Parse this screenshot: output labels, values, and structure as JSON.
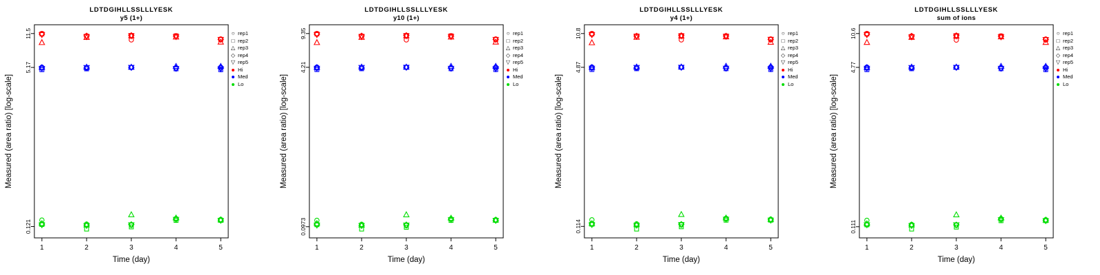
{
  "figure": {
    "grid": false,
    "legend_position": "right",
    "background": "#ffffff",
    "axis_color": "#000000",
    "legend": {
      "reps": [
        {
          "label": "rep1",
          "symbol": "circle"
        },
        {
          "label": "rep2",
          "symbol": "square"
        },
        {
          "label": "rep3",
          "symbol": "triangle-up"
        },
        {
          "label": "rep4",
          "symbol": "diamond"
        },
        {
          "label": "rep5",
          "symbol": "triangle-down"
        }
      ],
      "groups": [
        {
          "label": "Hi",
          "color": "#ff0000"
        },
        {
          "label": "Med",
          "color": "#0000ff"
        },
        {
          "label": "Lo",
          "color": "#00dd00"
        }
      ]
    }
  },
  "chart_data": [
    {
      "type": "scatter",
      "title": "LDTDGIHLLSSLLLYESK",
      "subtitle": "y5 (1+)",
      "xlabel": "Time (day)",
      "ylabel": "Measured (area ratio) [log-scale]",
      "y_scale": "log",
      "xlim": [
        0.8,
        5.2
      ],
      "x_ticks": [
        1,
        2,
        3,
        4,
        5
      ],
      "y_ticks": [
        "11.5",
        "5.17",
        "0.121"
      ],
      "series": [
        {
          "name": "Hi",
          "color": "#ff0000",
          "reps": {
            "rep1": [
              11.5,
              10.9,
              9.9,
              10.9,
              10.1
            ],
            "rep2": [
              11.4,
              10.8,
              11.0,
              10.9,
              10.0
            ],
            "rep3": [
              9.3,
              10.5,
              10.9,
              10.6,
              9.4
            ],
            "rep4": [
              11.3,
              10.9,
              11.0,
              10.8,
              10.0
            ],
            "rep5": [
              11.2,
              10.7,
              10.9,
              10.7,
              10.0
            ]
          }
        },
        {
          "name": "Med",
          "color": "#0000ff",
          "reps": {
            "rep1": [
              5.2,
              5.1,
              5.17,
              5.1,
              5.2
            ],
            "rep2": [
              4.9,
              5.0,
              5.17,
              5.0,
              4.9
            ],
            "rep3": [
              5.15,
              5.2,
              5.2,
              5.3,
              5.3
            ],
            "rep4": [
              5.1,
              5.1,
              5.17,
              5.1,
              5.1
            ],
            "rep5": [
              5.05,
              5.15,
              5.17,
              5.05,
              5.0
            ]
          }
        },
        {
          "name": "Lo",
          "color": "#00dd00",
          "reps": {
            "rep1": [
              0.141,
              0.128,
              0.125,
              0.146,
              0.143
            ],
            "rep2": [
              0.127,
              0.114,
              0.12,
              0.14,
              0.14
            ],
            "rep3": [
              0.13,
              0.126,
              0.16,
              0.148,
              0.142
            ],
            "rep4": [
              0.128,
              0.125,
              0.127,
              0.144,
              0.141
            ],
            "rep5": [
              0.126,
              0.124,
              0.126,
              0.143,
              0.14
            ]
          }
        }
      ]
    },
    {
      "type": "scatter",
      "title": "LDTDGIHLLSSLLLYESK",
      "subtitle": "y10 (1+)",
      "xlabel": "Time (day)",
      "ylabel": "Measured (area ratio) [log-scale]",
      "y_scale": "log",
      "xlim": [
        0.8,
        5.2
      ],
      "x_ticks": [
        1,
        2,
        3,
        4,
        5
      ],
      "y_ticks": [
        "9.35",
        "4.21",
        "0.0973"
      ],
      "series": [
        {
          "name": "Hi",
          "color": "#ff0000",
          "reps": {
            "rep1": [
              9.35,
              8.86,
              8.05,
              8.86,
              8.21
            ],
            "rep2": [
              9.27,
              8.78,
              8.94,
              8.86,
              8.13
            ],
            "rep3": [
              7.56,
              8.54,
              8.86,
              8.62,
              7.64
            ],
            "rep4": [
              9.19,
              8.86,
              8.94,
              8.78,
              8.13
            ],
            "rep5": [
              9.11,
              8.7,
              8.86,
              8.7,
              8.13
            ]
          }
        },
        {
          "name": "Med",
          "color": "#0000ff",
          "reps": {
            "rep1": [
              4.23,
              4.15,
              4.21,
              4.15,
              4.23
            ],
            "rep2": [
              3.99,
              4.07,
              4.21,
              4.07,
              3.99
            ],
            "rep3": [
              4.19,
              4.23,
              4.23,
              4.31,
              4.31
            ],
            "rep4": [
              4.15,
              4.15,
              4.21,
              4.15,
              4.15
            ],
            "rep5": [
              4.11,
              4.19,
              4.21,
              4.11,
              4.07
            ]
          }
        },
        {
          "name": "Lo",
          "color": "#00dd00",
          "reps": {
            "rep1": [
              0.113,
              0.103,
              0.1,
              0.117,
              0.115
            ],
            "rep2": [
              0.102,
              0.092,
              0.096,
              0.113,
              0.113
            ],
            "rep3": [
              0.105,
              0.101,
              0.129,
              0.119,
              0.114
            ],
            "rep4": [
              0.103,
              0.1,
              0.102,
              0.116,
              0.113
            ],
            "rep5": [
              0.101,
              0.1,
              0.101,
              0.115,
              0.113
            ]
          }
        }
      ]
    },
    {
      "type": "scatter",
      "title": "LDTDGIHLLSSLLLYESK",
      "subtitle": "y4 (1+)",
      "xlabel": "Time (day)",
      "ylabel": "Measured (area ratio) [log-scale]",
      "y_scale": "log",
      "xlim": [
        0.8,
        5.2
      ],
      "x_ticks": [
        1,
        2,
        3,
        4,
        5
      ],
      "y_ticks": [
        "10.8",
        "4.87",
        "0.114"
      ],
      "series": [
        {
          "name": "Hi",
          "color": "#ff0000",
          "reps": {
            "rep1": [
              10.8,
              10.2,
              9.3,
              10.2,
              9.5
            ],
            "rep2": [
              10.7,
              10.2,
              10.3,
              10.2,
              9.4
            ],
            "rep3": [
              8.7,
              9.9,
              10.2,
              10.0,
              8.8
            ],
            "rep4": [
              10.6,
              10.2,
              10.3,
              10.2,
              9.4
            ],
            "rep5": [
              10.5,
              10.1,
              10.2,
              10.1,
              9.4
            ]
          }
        },
        {
          "name": "Med",
          "color": "#0000ff",
          "reps": {
            "rep1": [
              4.9,
              4.8,
              4.87,
              4.8,
              4.9
            ],
            "rep2": [
              4.62,
              4.71,
              4.87,
              4.71,
              4.62
            ],
            "rep3": [
              4.85,
              4.9,
              4.9,
              4.99,
              4.99
            ],
            "rep4": [
              4.8,
              4.8,
              4.87,
              4.8,
              4.8
            ],
            "rep5": [
              4.76,
              4.85,
              4.87,
              4.76,
              4.71
            ]
          }
        },
        {
          "name": "Lo",
          "color": "#00dd00",
          "reps": {
            "rep1": [
              0.133,
              0.121,
              0.118,
              0.138,
              0.135
            ],
            "rep2": [
              0.12,
              0.107,
              0.113,
              0.132,
              0.132
            ],
            "rep3": [
              0.122,
              0.119,
              0.151,
              0.139,
              0.134
            ],
            "rep4": [
              0.121,
              0.118,
              0.12,
              0.136,
              0.133
            ],
            "rep5": [
              0.119,
              0.117,
              0.119,
              0.135,
              0.132
            ]
          }
        }
      ]
    },
    {
      "type": "scatter",
      "title": "LDTDGIHLLSSLLLYESK",
      "subtitle": "sum of ions",
      "xlabel": "Time (day)",
      "ylabel": "Measured (area ratio) [log-scale]",
      "y_scale": "log",
      "xlim": [
        0.8,
        5.2
      ],
      "x_ticks": [
        1,
        2,
        3,
        4,
        5
      ],
      "y_ticks": [
        "10.6",
        "4.77",
        "0.111"
      ],
      "series": [
        {
          "name": "Hi",
          "color": "#ff0000",
          "reps": {
            "rep1": [
              10.6,
              10.0,
              9.1,
              10.0,
              9.3
            ],
            "rep2": [
              10.5,
              9.9,
              10.1,
              10.0,
              9.2
            ],
            "rep3": [
              8.6,
              9.7,
              10.0,
              9.8,
              8.6
            ],
            "rep4": [
              10.4,
              10.0,
              10.1,
              9.9,
              9.2
            ],
            "rep5": [
              10.3,
              9.8,
              10.0,
              9.8,
              9.2
            ]
          }
        },
        {
          "name": "Med",
          "color": "#0000ff",
          "reps": {
            "rep1": [
              4.8,
              4.71,
              4.77,
              4.71,
              4.8
            ],
            "rep2": [
              4.52,
              4.62,
              4.77,
              4.62,
              4.52
            ],
            "rep3": [
              4.75,
              4.8,
              4.8,
              4.89,
              4.89
            ],
            "rep4": [
              4.71,
              4.71,
              4.77,
              4.71,
              4.71
            ],
            "rep5": [
              4.66,
              4.75,
              4.77,
              4.66,
              4.62
            ]
          }
        },
        {
          "name": "Lo",
          "color": "#00dd00",
          "reps": {
            "rep1": [
              0.129,
              0.117,
              0.115,
              0.134,
              0.131
            ],
            "rep2": [
              0.116,
              0.105,
              0.11,
              0.128,
              0.128
            ],
            "rep3": [
              0.119,
              0.116,
              0.147,
              0.136,
              0.13
            ],
            "rep4": [
              0.117,
              0.115,
              0.116,
              0.132,
              0.129
            ],
            "rep5": [
              0.116,
              0.114,
              0.116,
              0.131,
              0.128
            ]
          }
        }
      ]
    }
  ]
}
